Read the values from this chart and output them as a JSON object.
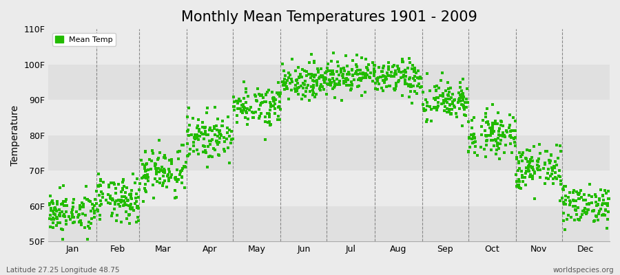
{
  "title": "Monthly Mean Temperatures 1901 - 2009",
  "ylabel": "Temperature",
  "xlabel": "",
  "ylim": [
    50,
    110
  ],
  "yticks": [
    50,
    60,
    70,
    80,
    90,
    100,
    110
  ],
  "ytick_labels": [
    "50F",
    "60F",
    "70F",
    "80F",
    "90F",
    "100F",
    "110F"
  ],
  "month_labels": [
    "Jan",
    "Feb",
    "Mar",
    "Apr",
    "May",
    "Jun",
    "Jul",
    "Aug",
    "Sep",
    "Oct",
    "Nov",
    "Dec"
  ],
  "month_days": [
    31,
    28,
    31,
    30,
    31,
    30,
    31,
    31,
    30,
    31,
    30,
    31
  ],
  "dot_color": "#22bb00",
  "legend_label": "Mean Temp",
  "bottom_left_text": "Latitude 27.25 Longitude 48.75",
  "bottom_right_text": "worldspecies.org",
  "background_color": "#ebebeb",
  "plot_bg_color": "#ebebeb",
  "band_colors": [
    "#e0e0e0",
    "#ebebeb"
  ],
  "title_fontsize": 15,
  "axis_label_fontsize": 10,
  "tick_label_fontsize": 9,
  "monthly_means": [
    58.0,
    61.5,
    70.0,
    79.5,
    88.5,
    95.5,
    97.0,
    96.0,
    89.5,
    80.5,
    70.5,
    60.5
  ],
  "monthly_stds": [
    2.8,
    3.2,
    3.5,
    3.2,
    2.8,
    2.5,
    2.5,
    2.5,
    3.0,
    3.0,
    3.2,
    2.8
  ],
  "n_years": 109,
  "seed": 42
}
